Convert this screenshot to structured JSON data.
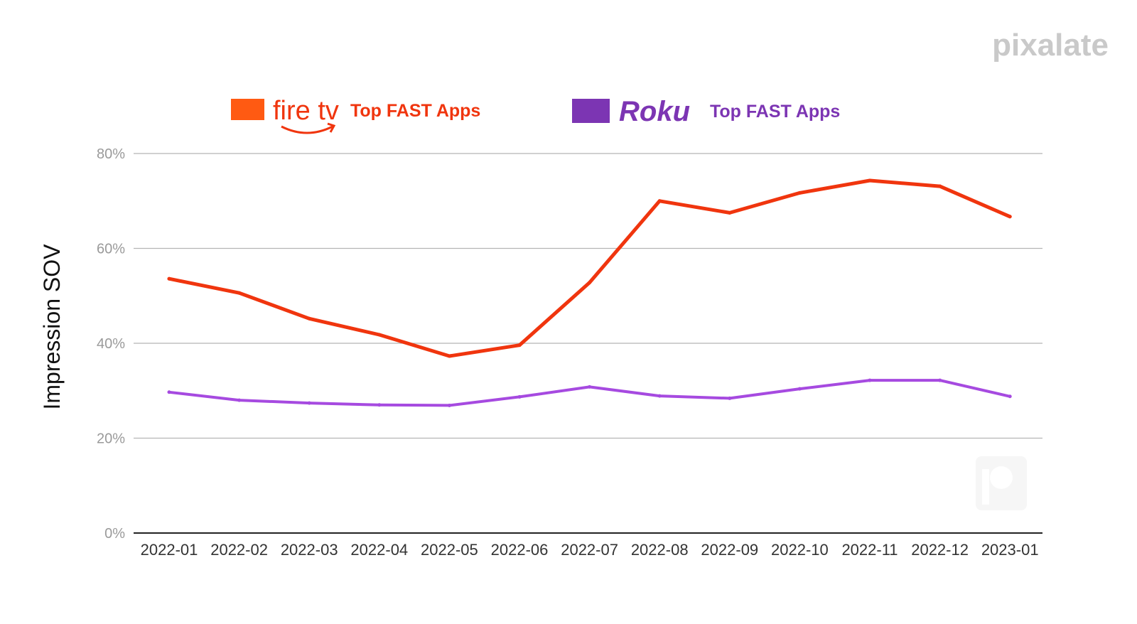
{
  "brand": {
    "wordmark": "pixalate"
  },
  "legend": [
    {
      "brand": "fire tv",
      "label": "Top FAST Apps",
      "color": "#f0350e",
      "swatch": "#ff5a12"
    },
    {
      "brand": "Roku",
      "label": "Top FAST Apps",
      "color": "#7c35b3",
      "swatch": "#7c35b3"
    }
  ],
  "chart_data": {
    "type": "line",
    "title": "",
    "xlabel": "",
    "ylabel": "Impression SOV",
    "ylim": [
      0,
      80
    ],
    "yticks": [
      0,
      20,
      40,
      60,
      80
    ],
    "ytick_labels": [
      "0%",
      "20%",
      "40%",
      "60%",
      "80%"
    ],
    "grid": true,
    "legend_position": "top",
    "categories": [
      "2022-01",
      "2022-02",
      "2022-03",
      "2022-04",
      "2022-05",
      "2022-06",
      "2022-07",
      "2022-08",
      "2022-09",
      "2022-10",
      "2022-11",
      "2022-12",
      "2023-01"
    ],
    "series": [
      {
        "name": "fire tv Top FAST Apps",
        "color": "#f0350e",
        "values": [
          53.6,
          50.6,
          45.2,
          41.8,
          37.3,
          39.6,
          52.8,
          70.0,
          67.5,
          71.7,
          74.3,
          73.1,
          66.7
        ]
      },
      {
        "name": "Roku Top FAST Apps",
        "color": "#a64ae0",
        "values": [
          29.7,
          28.0,
          27.4,
          27.0,
          26.9,
          28.7,
          30.8,
          28.9,
          28.4,
          30.4,
          32.2,
          32.2,
          28.8
        ]
      }
    ]
  }
}
